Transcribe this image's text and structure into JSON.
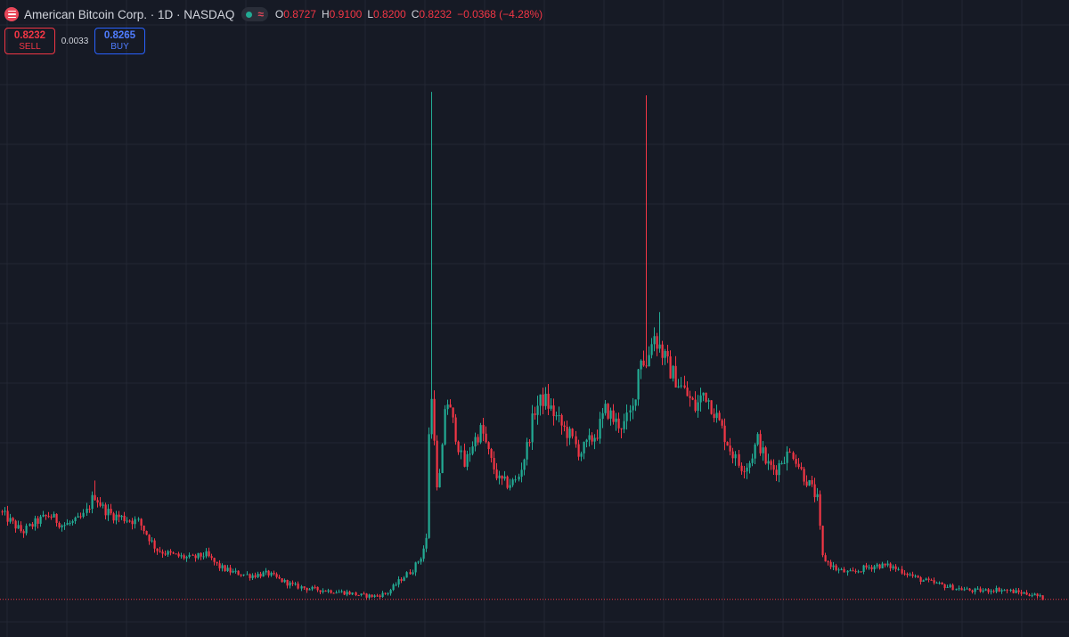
{
  "header": {
    "symbol_title": "American Bitcoin Corp. · 1D · NASDAQ",
    "approx_icon": "≈",
    "ohlc": [
      {
        "key": "O",
        "value": "0.8727"
      },
      {
        "key": "H",
        "value": "0.9100"
      },
      {
        "key": "L",
        "value": "0.8200"
      },
      {
        "key": "C",
        "value": "0.8232"
      },
      {
        "key": "",
        "value": "−0.0368 (−4.28%)"
      }
    ]
  },
  "trade": {
    "sell_price": "0.8232",
    "sell_label": "SELL",
    "spread": "0.0033",
    "buy_price": "0.8265",
    "buy_label": "BUY"
  },
  "colors": {
    "background": "#161a25",
    "grid": "#232733",
    "up": "#22ab94",
    "down": "#f23645",
    "price_line": "#f23645"
  },
  "chart_data": {
    "type": "candlestick",
    "timeframe": "1D",
    "grid": true,
    "price_range": [
      0.6,
      8.5
    ],
    "last_price": 0.8232,
    "path_points": [
      [
        0,
        2.1
      ],
      [
        12,
        1.95
      ],
      [
        25,
        1.8
      ],
      [
        40,
        1.95
      ],
      [
        55,
        2.05
      ],
      [
        70,
        1.9
      ],
      [
        85,
        1.95
      ],
      [
        95,
        2.05
      ],
      [
        105,
        2.35
      ],
      [
        115,
        2.15
      ],
      [
        125,
        2.05
      ],
      [
        140,
        2.0
      ],
      [
        155,
        1.95
      ],
      [
        165,
        1.75
      ],
      [
        175,
        1.55
      ],
      [
        185,
        1.5
      ],
      [
        200,
        1.45
      ],
      [
        215,
        1.42
      ],
      [
        230,
        1.48
      ],
      [
        245,
        1.3
      ],
      [
        260,
        1.22
      ],
      [
        280,
        1.17
      ],
      [
        300,
        1.2
      ],
      [
        315,
        1.1
      ],
      [
        330,
        1.02
      ],
      [
        345,
        0.98
      ],
      [
        360,
        0.96
      ],
      [
        375,
        0.94
      ],
      [
        390,
        0.92
      ],
      [
        405,
        0.88
      ],
      [
        420,
        0.87
      ],
      [
        435,
        0.92
      ],
      [
        450,
        1.12
      ],
      [
        462,
        1.25
      ],
      [
        472,
        1.45
      ],
      [
        478,
        1.7
      ],
      [
        482,
        3.9
      ],
      [
        486,
        3.5
      ],
      [
        490,
        2.4
      ],
      [
        495,
        2.75
      ],
      [
        500,
        3.8
      ],
      [
        510,
        3.3
      ],
      [
        520,
        2.75
      ],
      [
        530,
        3.1
      ],
      [
        540,
        3.3
      ],
      [
        550,
        2.85
      ],
      [
        560,
        2.55
      ],
      [
        570,
        2.5
      ],
      [
        580,
        2.55
      ],
      [
        590,
        3.0
      ],
      [
        600,
        3.6
      ],
      [
        610,
        3.75
      ],
      [
        620,
        3.55
      ],
      [
        630,
        3.35
      ],
      [
        640,
        3.2
      ],
      [
        650,
        2.95
      ],
      [
        660,
        3.1
      ],
      [
        670,
        3.25
      ],
      [
        680,
        3.6
      ],
      [
        690,
        3.4
      ],
      [
        700,
        3.35
      ],
      [
        710,
        3.6
      ],
      [
        718,
        4.4
      ],
      [
        725,
        4.2
      ],
      [
        732,
        4.7
      ],
      [
        740,
        4.5
      ],
      [
        750,
        4.2
      ],
      [
        760,
        4.0
      ],
      [
        770,
        3.8
      ],
      [
        780,
        3.6
      ],
      [
        790,
        3.85
      ],
      [
        800,
        3.6
      ],
      [
        810,
        3.3
      ],
      [
        820,
        3.0
      ],
      [
        830,
        2.75
      ],
      [
        840,
        2.8
      ],
      [
        850,
        3.15
      ],
      [
        860,
        2.8
      ],
      [
        870,
        2.7
      ],
      [
        880,
        2.9
      ],
      [
        890,
        2.95
      ],
      [
        900,
        2.65
      ],
      [
        910,
        2.45
      ],
      [
        918,
        2.25
      ],
      [
        922,
        1.45
      ],
      [
        930,
        1.35
      ],
      [
        940,
        1.25
      ],
      [
        955,
        1.2
      ],
      [
        970,
        1.28
      ],
      [
        985,
        1.32
      ],
      [
        1000,
        1.3
      ],
      [
        1015,
        1.22
      ],
      [
        1030,
        1.12
      ],
      [
        1045,
        1.07
      ],
      [
        1060,
        1.02
      ],
      [
        1075,
        0.98
      ],
      [
        1090,
        0.95
      ],
      [
        1105,
        0.95
      ],
      [
        1120,
        0.97
      ],
      [
        1135,
        0.94
      ],
      [
        1150,
        0.91
      ],
      [
        1160,
        0.89
      ],
      [
        1170,
        0.84
      ]
    ],
    "spikes": [
      {
        "at": 483,
        "high": 8.2
      },
      {
        "at": 724,
        "high": 8.15
      },
      {
        "at": 105,
        "high": 2.55
      },
      {
        "at": 740,
        "high": 5.0
      }
    ]
  }
}
